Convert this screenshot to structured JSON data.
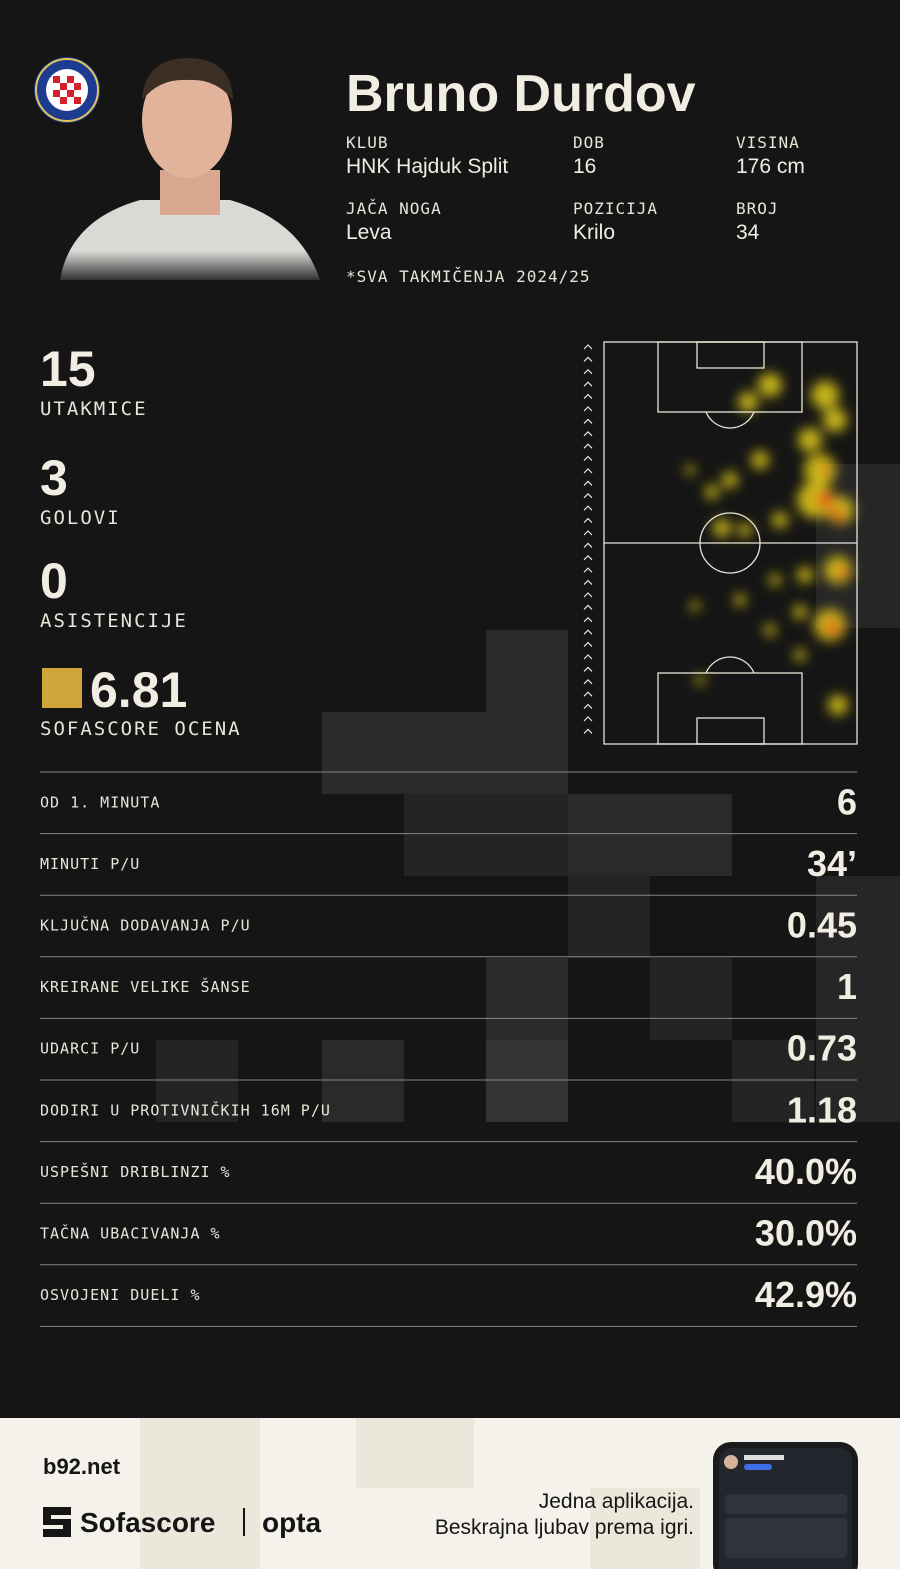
{
  "player": {
    "name": "Bruno Durdov",
    "info": [
      {
        "label": "KLUB",
        "value": "HNK Hajduk Split"
      },
      {
        "label": "DOB",
        "value": 16
      },
      {
        "label": "VISINA",
        "value": "176 cm"
      },
      {
        "label": "JAČA NOGA",
        "value": "Leva"
      },
      {
        "label": "POZICIJA",
        "value": "Krilo"
      },
      {
        "label": "BROJ",
        "value": 34
      }
    ],
    "note": "*SVA TAKMIČENJA 2024/25"
  },
  "summary": [
    {
      "value": 15,
      "label": "UTAKMICE"
    },
    {
      "value": 3,
      "label": "GOLOVI"
    },
    {
      "value": 0,
      "label": "ASISTENCIJE"
    }
  ],
  "rating": {
    "value": 6.81,
    "label": "SOFASCORE OCENA"
  },
  "table": {
    "rows": [
      [
        "OD 1. MINUTA",
        6
      ],
      [
        "MINUTI P/U",
        "34’"
      ],
      [
        "KLJUČNA DODAVANJA P/U",
        0.45
      ],
      [
        "KREIRANE VELIKE ŠANSE",
        1
      ],
      [
        "UDARCI P/U",
        0.73
      ],
      [
        "DODIRI U PROTIVNIČKIH 16M P/U",
        1.18
      ],
      [
        "USPEŠNI DRIBLINZI %",
        "40.0%"
      ],
      [
        "TAČNA UBACIVANJA %",
        "30.0%"
      ],
      [
        "OSVOJENI DUELI %",
        "42.9%"
      ]
    ]
  },
  "footer": {
    "brand": "b92.net",
    "logos": [
      "Sofascore",
      "opta"
    ],
    "tagline": [
      "Jedna aplikacija.",
      "Beskrajna ljubav prema igri."
    ]
  }
}
